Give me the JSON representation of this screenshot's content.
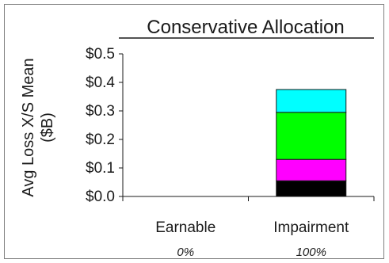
{
  "chart_data": {
    "type": "bar",
    "stacked": true,
    "title": "Conservative Allocation",
    "ylabel": "Avg Loss X/S Mean ($B)",
    "ylabel_line1": "Avg Loss X/S Mean",
    "ylabel_line2": "($B)",
    "ylim": [
      0,
      0.5
    ],
    "y_ticks": [
      "$0.0",
      "$0.1",
      "$0.2",
      "$0.3",
      "$0.4",
      "$0.5"
    ],
    "y_tick_values": [
      0,
      0.1,
      0.2,
      0.3,
      0.4,
      0.5
    ],
    "categories": [
      "Earnable",
      "Impairment"
    ],
    "category_sublabels": [
      "0%",
      "100%"
    ],
    "series": [
      {
        "values": [
          0,
          0.055
        ],
        "color": "#000000"
      },
      {
        "values": [
          0,
          0.075
        ],
        "color": "#ff00ff"
      },
      {
        "values": [
          0,
          0.165
        ],
        "color": "#00ff00"
      },
      {
        "values": [
          0,
          0.08
        ],
        "color": "#00ffff"
      }
    ],
    "grid": false,
    "legend": "none"
  }
}
